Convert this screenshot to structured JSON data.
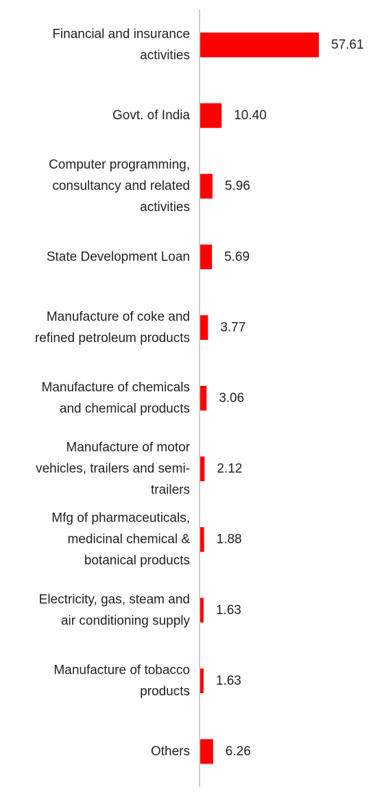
{
  "chart_data": {
    "type": "bar",
    "orientation": "horizontal",
    "title": "",
    "xlabel": "",
    "ylabel": "",
    "grid": false,
    "legend": "none",
    "bar_color": "#ff0000",
    "axis_color": "#cccccc",
    "xlim": [
      0,
      57.61
    ],
    "categories": [
      [
        "Financial and insurance",
        "activities"
      ],
      [
        "Govt. of India"
      ],
      [
        "Computer programming,",
        "consultancy and related",
        "activities"
      ],
      [
        "State Development Loan"
      ],
      [
        "Manufacture of coke and",
        "refined petroleum products"
      ],
      [
        "Manufacture of chemicals",
        "and chemical products"
      ],
      [
        "Manufacture of motor",
        "vehicles, trailers and semi-",
        "trailers"
      ],
      [
        "Mfg of pharmaceuticals,",
        "medicinal chemical &",
        "botanical products"
      ],
      [
        "Electricity, gas, steam and",
        "air conditioning supply"
      ],
      [
        "Manufacture of tobacco",
        "products"
      ],
      [
        "Others"
      ]
    ],
    "values": [
      57.61,
      10.4,
      5.96,
      5.69,
      3.77,
      3.06,
      2.12,
      1.88,
      1.63,
      1.63,
      6.26
    ],
    "value_labels": [
      "57.61",
      "10.40",
      "5.96",
      "5.69",
      "3.77",
      "3.06",
      "2.12",
      "1.88",
      "1.63",
      "1.63",
      "6.26"
    ]
  }
}
